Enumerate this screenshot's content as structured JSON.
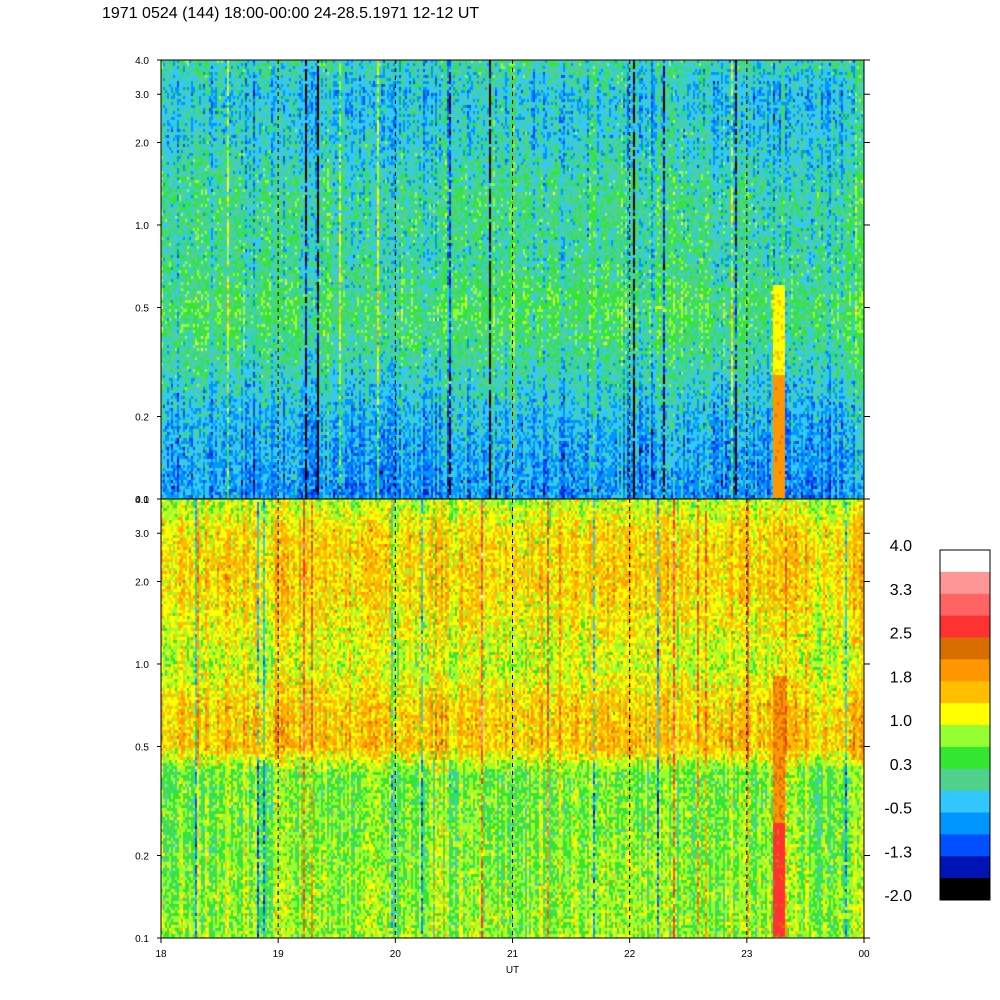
{
  "chart_data": {
    "type": "heatmap",
    "title": "1971 0524 (144) 18:00-00:00 24-28.5.1971  12-12 UT",
    "xlabel": "UT",
    "x_tick_labels": [
      "18",
      "19",
      "20",
      "21",
      "22",
      "23",
      "00"
    ],
    "x_range_hours": [
      18,
      24
    ],
    "y_scale": "log",
    "y_range": [
      0.1,
      4.0
    ],
    "y_tick_labels": [
      "4.0",
      "3.0",
      "2.0",
      "1.0",
      "0.5",
      "0.2",
      "0.1"
    ],
    "y_tick_values": [
      4.0,
      3.0,
      2.0,
      1.0,
      0.5,
      0.2,
      0.1
    ],
    "vertical_dashed_lines_at_hours": [
      19,
      20,
      21,
      22,
      23
    ],
    "panels": [
      {
        "name": "top",
        "baseline_level": [
          [
            0.1,
            -0.7
          ],
          [
            0.2,
            -0.4
          ],
          [
            0.4,
            0.2
          ],
          [
            0.5,
            0.3
          ],
          [
            0.8,
            0.0
          ],
          [
            1.2,
            0.1
          ],
          [
            2.0,
            -0.2
          ],
          [
            3.0,
            -0.3
          ],
          [
            4.0,
            0.0
          ]
        ],
        "features": [
          {
            "x_from": 23.22,
            "x_to": 23.32,
            "y_from": 0.1,
            "y_to": 0.28,
            "level": 2.0
          },
          {
            "x_from": 23.22,
            "x_to": 23.32,
            "y_from": 0.28,
            "y_to": 0.6,
            "level": 1.3
          }
        ]
      },
      {
        "name": "bottom",
        "baseline_level": [
          [
            0.1,
            0.8
          ],
          [
            0.2,
            0.7
          ],
          [
            0.4,
            0.6
          ],
          [
            0.5,
            1.6
          ],
          [
            0.7,
            1.5
          ],
          [
            1.0,
            1.0
          ],
          [
            1.5,
            1.3
          ],
          [
            2.0,
            1.5
          ],
          [
            3.0,
            1.4
          ],
          [
            4.0,
            0.9
          ]
        ],
        "features": [
          {
            "x_from": 23.22,
            "x_to": 23.32,
            "y_from": 0.1,
            "y_to": 0.26,
            "level": 2.6
          },
          {
            "x_from": 23.22,
            "x_to": 23.32,
            "y_from": 0.26,
            "y_to": 0.9,
            "level": 2.1
          }
        ]
      }
    ],
    "colorbar": {
      "labels": [
        "4.0",
        "3.3",
        "2.5",
        "1.8",
        "1.0",
        "0.3",
        "-0.5",
        "-1.3",
        "-2.0"
      ],
      "colors_top_to_bottom": [
        "#ffffff",
        "#ff9696",
        "#ff6464",
        "#ff3232",
        "#d96e00",
        "#ff9600",
        "#ffbe00",
        "#ffff00",
        "#96ff32",
        "#32e632",
        "#50d28c",
        "#32c8ff",
        "#0096ff",
        "#0050ff",
        "#0014b4",
        "#000000"
      ],
      "range": [
        -2.0,
        4.0
      ]
    }
  }
}
